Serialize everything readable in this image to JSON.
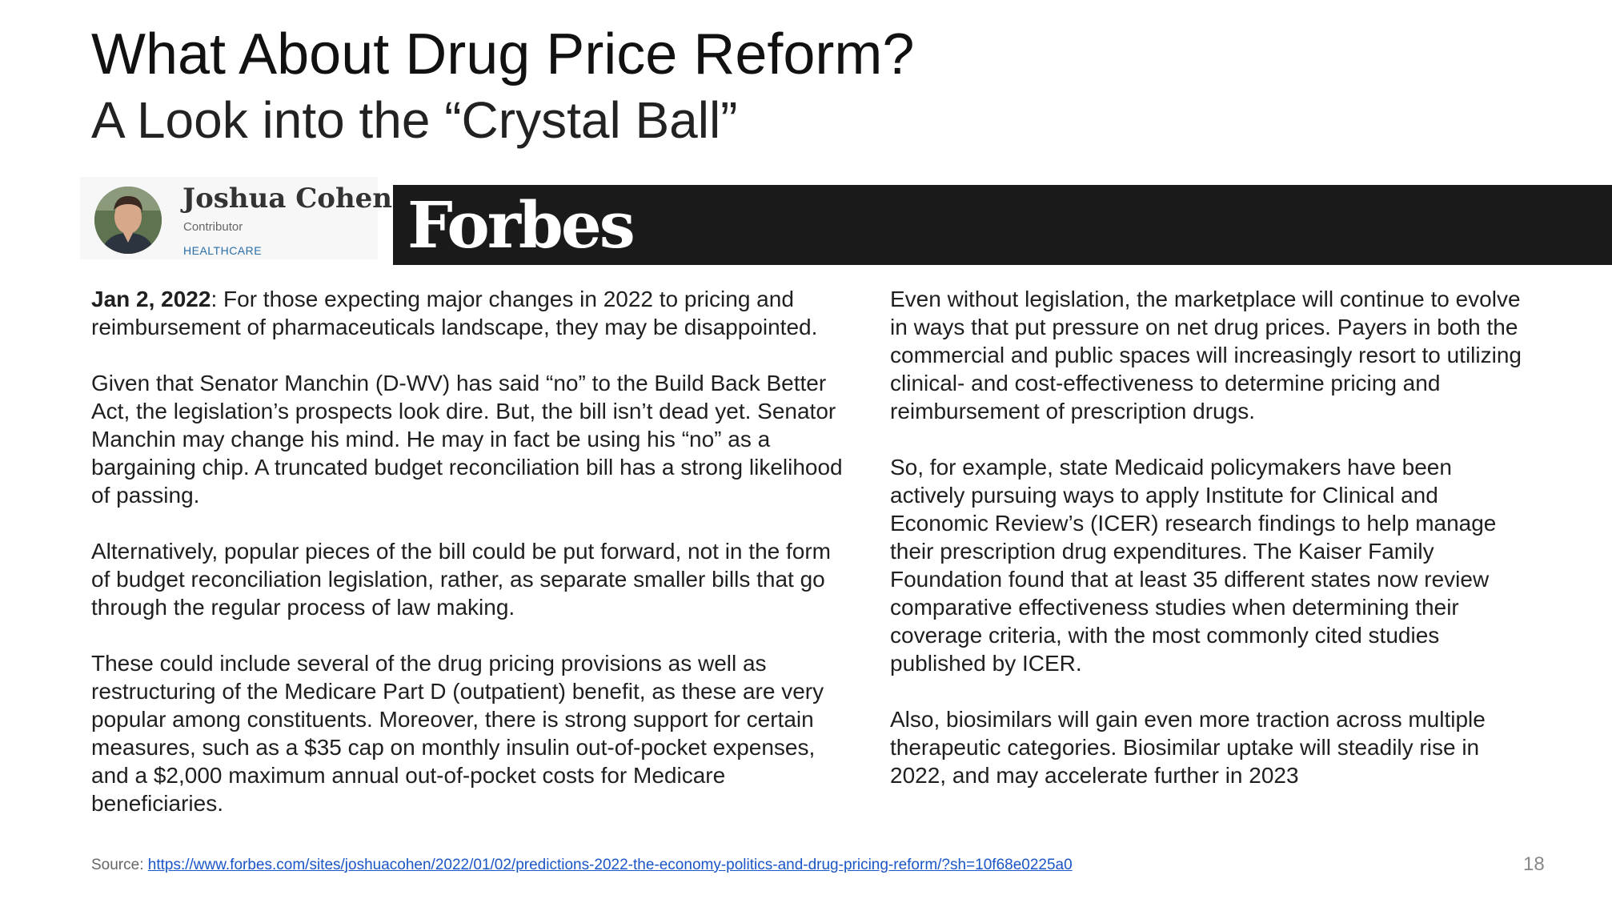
{
  "slide": {
    "title": "What About Drug Price Reform?",
    "subtitle": "A Look into the “Crystal Ball”",
    "page_number": "18"
  },
  "author": {
    "name": "Joshua Cohen",
    "role": "Contributor",
    "section": "HEALTHCARE",
    "avatar_icon": "author-photo"
  },
  "brand": {
    "logo_text": "Forbes",
    "banner_color": "#1a1a1a"
  },
  "left_column": {
    "p1_date": "Jan 2, 2022",
    "p1_text": ": For those expecting major changes in 2022 to pricing and reimbursement of pharmaceuticals landscape, they may be disappointed.",
    "p2": "Given that Senator Manchin (D-WV) has said “no” to the Build Back Better Act, the legislation’s prospects look dire. But, the bill isn’t dead yet. Senator Manchin may change his mind. He may in fact be using his “no” as a bargaining chip. A truncated budget reconciliation bill has a strong likelihood of passing.",
    "p3": "Alternatively, popular pieces of the bill could be put forward, not in the form of budget reconciliation legislation, rather, as separate smaller bills that go through the regular process of law making.",
    "p4": "These could include several of the drug pricing provisions as well as restructuring of the Medicare Part D (outpatient) benefit, as these are very popular among constituents. Moreover, there is strong support for certain measures, such as a $35 cap on monthly insulin out-of-pocket expenses, and a $2,000 maximum annual out-of-pocket costs for Medicare beneficiaries."
  },
  "right_column": {
    "p1": "Even without legislation, the marketplace will continue to evolve in ways that put pressure on net drug prices. Payers in both the commercial and public spaces will increasingly resort to utilizing clinical- and cost-effectiveness to determine pricing and reimbursement of prescription drugs.",
    "p2": "So, for example, state Medicaid policymakers have been actively pursuing ways to apply Institute for Clinical and Economic Review’s (ICER) research findings to help manage their prescription drug expenditures. The Kaiser Family Foundation found that at least 35 different states now review comparative effectiveness studies when determining their coverage criteria, with the most commonly cited studies published by ICER.",
    "p3": "Also, biosimilars will gain even more traction across multiple therapeutic categories. Biosimilar uptake will steadily rise in 2022, and may accelerate further in 2023"
  },
  "source": {
    "label": "Source: ",
    "url": "https://www.forbes.com/sites/joshuacohen/2022/01/02/predictions-2022-the-economy-politics-and-drug-pricing-reform/?sh=10f68e0225a0"
  }
}
